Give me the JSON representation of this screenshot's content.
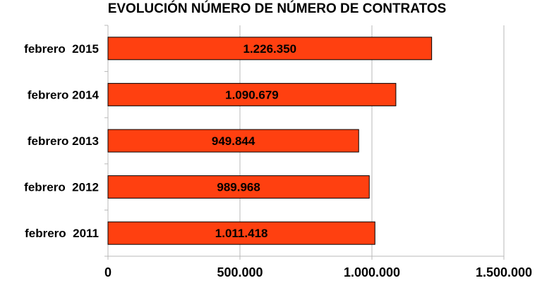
{
  "chart_data": {
    "type": "bar",
    "orientation": "horizontal",
    "title": "EVOLUCIÓN NÚMERO DE NÚMERO DE CONTRATOS",
    "xlabel": "",
    "ylabel": "",
    "categories": [
      "febrero  2015",
      "febrero 2014",
      "febrero 2013",
      "febrero  2012",
      "febrero  2011"
    ],
    "values": [
      1226350,
      1090679,
      949844,
      989968,
      1011418
    ],
    "data_labels": [
      "1.226.350",
      "1.090.679",
      "949.844",
      "989.968",
      "1.011.418"
    ],
    "xlim": [
      0,
      1500000
    ],
    "xticks": [
      0,
      500000,
      1000000,
      1500000
    ],
    "xtick_labels": [
      "0",
      "500.000",
      "1.000.000",
      "1.500.000"
    ],
    "grid": true,
    "legend": "none",
    "bar_color": "#FF4010",
    "bar_border_color": "#000000"
  }
}
